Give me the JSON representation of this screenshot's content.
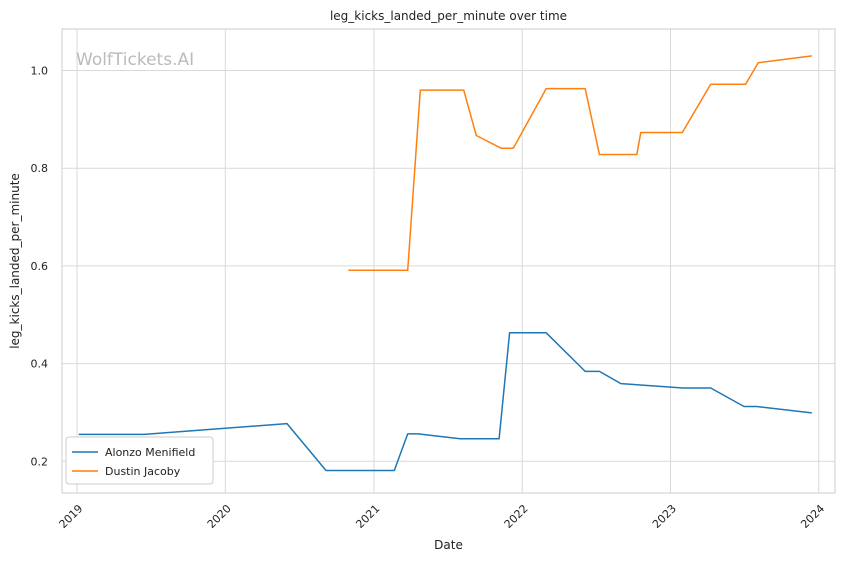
{
  "watermark": "WolfTickets.AI",
  "chart_data": {
    "type": "line",
    "title": "leg_kicks_landed_per_minute over time",
    "xlabel": "Date",
    "ylabel": "leg_kicks_landed_per_minute",
    "xlim": [
      "2018-11-25",
      "2024-02-10"
    ],
    "ylim": [
      0.135,
      1.085
    ],
    "x_ticks": [
      "2019-01-01",
      "2020-01-01",
      "2021-01-01",
      "2022-01-01",
      "2023-01-01",
      "2024-01-01"
    ],
    "x_tick_labels": [
      "2019",
      "2020",
      "2021",
      "2022",
      "2023",
      "2024"
    ],
    "y_ticks": [
      0.2,
      0.4,
      0.6,
      0.8,
      1.0
    ],
    "y_tick_labels": [
      "0.2",
      "0.4",
      "0.6",
      "0.8",
      "1.0"
    ],
    "grid": true,
    "legend_position": "bottom-left",
    "series": [
      {
        "name": "Alonzo Menifield",
        "color": "#1f77b4",
        "x": [
          "2019-01-05",
          "2019-06-15",
          "2020-06-01",
          "2020-09-05",
          "2021-02-20",
          "2021-03-25",
          "2021-04-20",
          "2021-08-01",
          "2021-11-05",
          "2021-12-01",
          "2022-03-01",
          "2022-06-05",
          "2022-07-10",
          "2022-09-01",
          "2023-02-01",
          "2023-04-10",
          "2023-07-01",
          "2023-08-01",
          "2023-12-15"
        ],
        "y": [
          0.255,
          0.255,
          0.277,
          0.181,
          0.181,
          0.256,
          0.256,
          0.246,
          0.246,
          0.463,
          0.463,
          0.384,
          0.384,
          0.359,
          0.35,
          0.35,
          0.312,
          0.312,
          0.299
        ]
      },
      {
        "name": "Dustin Jacoby",
        "color": "#ff7f0e",
        "x": [
          "2020-10-30",
          "2021-03-25",
          "2021-04-25",
          "2021-08-10",
          "2021-09-10",
          "2021-11-10",
          "2021-12-10",
          "2022-03-01",
          "2022-06-05",
          "2022-07-10",
          "2022-10-10",
          "2022-10-20",
          "2023-01-30",
          "2023-04-10",
          "2023-07-05",
          "2023-08-05",
          "2023-12-15"
        ],
        "y": [
          0.591,
          0.591,
          0.96,
          0.96,
          0.867,
          0.841,
          0.841,
          0.963,
          0.963,
          0.828,
          0.828,
          0.873,
          0.873,
          0.972,
          0.972,
          1.016,
          1.03
        ]
      }
    ]
  }
}
